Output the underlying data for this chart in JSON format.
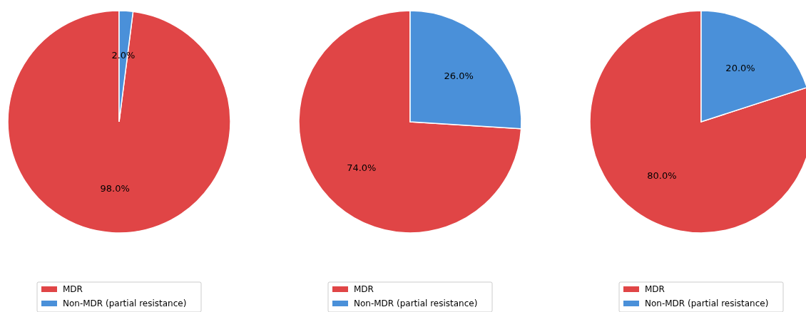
{
  "chart_data": [
    {
      "type": "pie",
      "categories": [
        "MDR",
        "Non-MDR (partial resistance)"
      ],
      "values": [
        98,
        2
      ],
      "colors": [
        "#e04546",
        "#4a90d9"
      ],
      "value_labels": [
        "98.0%",
        "2.0%"
      ],
      "legend": "bottom"
    },
    {
      "type": "pie",
      "categories": [
        "MDR",
        "Non-MDR (partial resistance)"
      ],
      "values": [
        74,
        26
      ],
      "colors": [
        "#e04546",
        "#4a90d9"
      ],
      "value_labels": [
        "74.0%",
        "26.0%"
      ],
      "legend": "bottom"
    },
    {
      "type": "pie",
      "categories": [
        "MDR",
        "Non-MDR (partial resistance)"
      ],
      "values": [
        80,
        20
      ],
      "colors": [
        "#e04546",
        "#4a90d9"
      ],
      "value_labels": [
        "80.0%",
        "20.0%"
      ],
      "legend": "bottom"
    }
  ]
}
